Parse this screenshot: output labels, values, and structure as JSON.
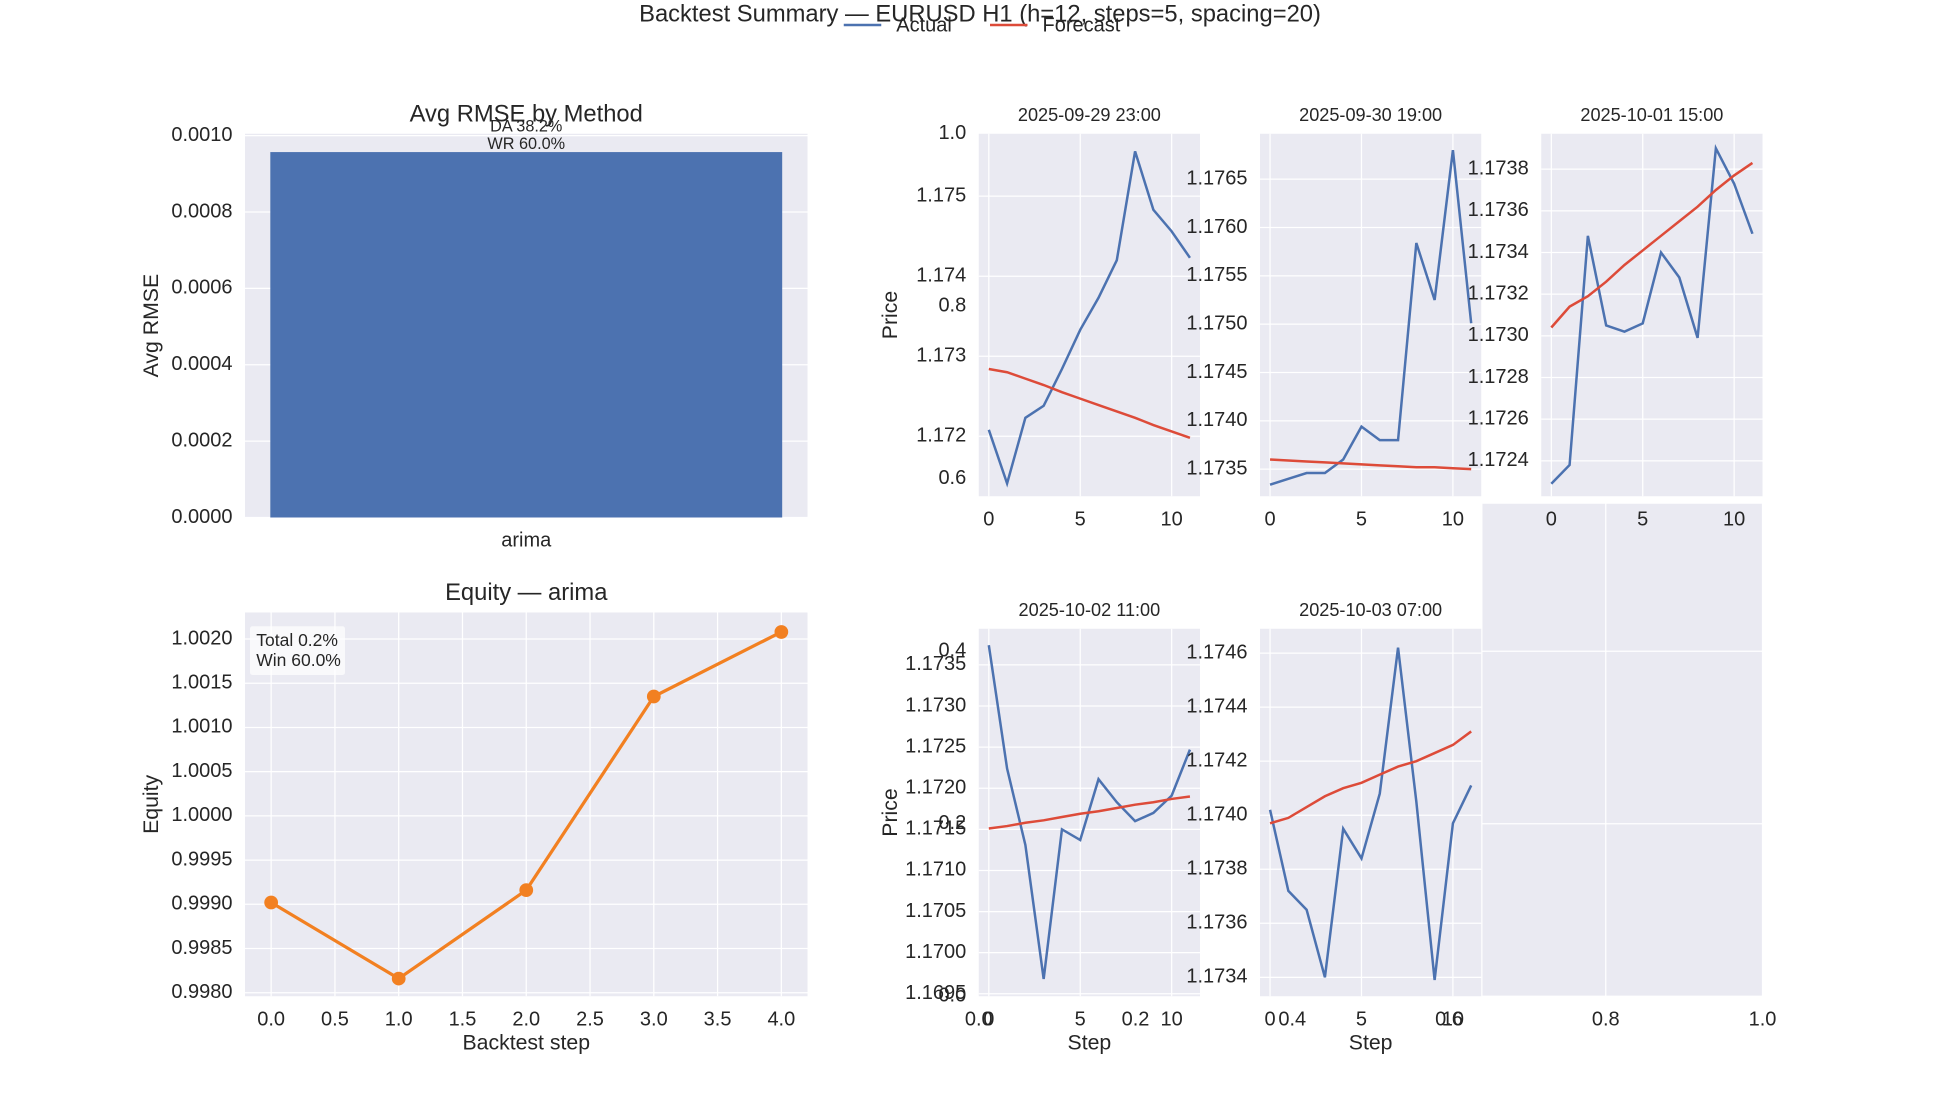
{
  "title": "Backtest Summary — EURUSD H1 (h=12, steps=5, spacing=20)",
  "legend": [
    {
      "name": "Actual",
      "color": "#4c72b0"
    },
    {
      "name": "Forecast",
      "color": "#dd4b39"
    }
  ],
  "chart_data": [
    {
      "type": "bar",
      "title": "Avg RMSE by Method",
      "ylabel": "Avg RMSE",
      "facecolor": "#eaeaf2",
      "grid": true,
      "categories": [
        "arima"
      ],
      "values": [
        0.000957
      ],
      "color": "#4c72b0",
      "annotations": [
        "DA 38.2%",
        "WR 60.0%"
      ],
      "ylim": [
        0,
        0.001005
      ],
      "yticks": [
        {
          "value": 0,
          "label": "0.0000"
        },
        {
          "value": 0.0002,
          "label": "0.0002"
        },
        {
          "value": 0.0004,
          "label": "0.0004"
        },
        {
          "value": 0.0006,
          "label": "0.0006"
        },
        {
          "value": 0.0008,
          "label": "0.0008"
        },
        {
          "value": 0.001,
          "label": "0.0010"
        }
      ]
    },
    {
      "type": "line",
      "title": "Equity — arima",
      "xlabel": "Backtest step",
      "ylabel": "Equity",
      "facecolor": "#eaeaf2",
      "grid": true,
      "x": [
        0,
        1,
        2,
        3,
        4
      ],
      "series": [
        {
          "color": "#f28021",
          "values": [
            0.99902,
            0.99816,
            0.99916,
            1.00135,
            1.00208
          ],
          "markers": true
        }
      ],
      "annotations": [
        "Total 0.2%",
        "Win 60.0%"
      ],
      "xlim": [
        -0.205,
        4.205
      ],
      "ylim": [
        0.99796,
        1.0023
      ],
      "xticks": [
        {
          "value": 0,
          "label": "0.0"
        },
        0.5,
        {
          "value": 1,
          "label": "1.0"
        },
        1.5,
        {
          "value": 2,
          "label": "2.0"
        },
        2.5,
        {
          "value": 3,
          "label": "3.0"
        },
        3.5,
        {
          "value": 4,
          "label": "4.0"
        }
      ],
      "yticks": [
        {
          "value": 0.998,
          "label": "0.9980"
        },
        0.9985,
        {
          "value": 0.999,
          "label": "0.9990"
        },
        0.9995,
        {
          "value": 1,
          "label": "1.0000"
        },
        1.0005,
        {
          "value": 1.001,
          "label": "1.0010"
        },
        1.0015,
        {
          "value": 1.002,
          "label": "1.0020"
        }
      ]
    },
    {
      "type": "empty",
      "grid": true,
      "xlim": [
        0,
        1
      ],
      "ylim": [
        0,
        1
      ],
      "xticks": [
        {
          "value": 0,
          "label": "0.0"
        },
        0.2,
        0.4,
        0.6,
        0.8,
        {
          "value": 1,
          "label": "1.0"
        }
      ],
      "yticks": [
        {
          "value": 0,
          "label": "0.0"
        },
        0.2,
        0.4,
        0.6,
        0.8,
        {
          "value": 1,
          "label": "1.0"
        }
      ]
    },
    {
      "type": "line",
      "title": "2025-09-29 23:00",
      "ylabel": "Price",
      "facecolor": "#eaeaf2",
      "grid": true,
      "x": [
        0,
        1,
        2,
        3,
        4,
        5,
        6,
        7,
        8,
        9,
        10,
        11
      ],
      "series": [
        {
          "color": "#4c72b0",
          "values": [
            1.17208,
            1.17141,
            1.17223,
            1.17238,
            1.17284,
            1.17333,
            1.17373,
            1.1742,
            1.17556,
            1.17483,
            1.17456,
            1.17423
          ]
        },
        {
          "color": "#dd4b39",
          "values": [
            1.17284,
            1.1728,
            1.17272,
            1.17264,
            1.17255,
            1.17247,
            1.17239,
            1.17231,
            1.17223,
            1.17214,
            1.17206,
            1.17198
          ]
        }
      ],
      "xlim": [
        -0.55,
        11.55
      ],
      "ylim": [
        1.17125,
        1.17578
      ],
      "xticks": [
        0,
        5,
        10
      ],
      "yticks": [
        1.172,
        1.173,
        1.174,
        1.175
      ]
    },
    {
      "type": "line",
      "title": "2025-09-30 19:00",
      "facecolor": "#eaeaf2",
      "grid": true,
      "x": [
        0,
        1,
        2,
        3,
        4,
        5,
        6,
        7,
        8,
        9,
        10,
        11
      ],
      "series": [
        {
          "color": "#4c72b0",
          "values": [
            1.17334,
            1.1734,
            1.17346,
            1.17346,
            1.1736,
            1.17394,
            1.1738,
            1.1738,
            1.17584,
            1.17525,
            1.1768,
            1.17501
          ]
        },
        {
          "color": "#dd4b39",
          "values": [
            1.1736,
            1.17359,
            1.17358,
            1.17357,
            1.17356,
            1.17355,
            1.17354,
            1.17353,
            1.17352,
            1.17352,
            1.17351,
            1.1735
          ]
        }
      ],
      "xlim": [
        -0.55,
        11.55
      ],
      "ylim": [
        1.17322,
        1.17697
      ],
      "xticks": [
        0,
        5,
        10
      ],
      "yticks": [
        1.1735,
        {
          "value": 1.174,
          "label": "1.1740"
        },
        1.1745,
        {
          "value": 1.175,
          "label": "1.1750"
        },
        1.1755,
        {
          "value": 1.176,
          "label": "1.1760"
        },
        1.1765
      ]
    },
    {
      "type": "line",
      "title": "2025-10-01 15:00",
      "facecolor": "#eaeaf2",
      "grid": true,
      "x": [
        0,
        1,
        2,
        3,
        4,
        5,
        6,
        7,
        8,
        9,
        10,
        11
      ],
      "series": [
        {
          "color": "#4c72b0",
          "values": [
            1.17229,
            1.17238,
            1.17348,
            1.17305,
            1.17302,
            1.17306,
            1.1734,
            1.17328,
            1.17299,
            1.1739,
            1.17373,
            1.17349
          ]
        },
        {
          "color": "#dd4b39",
          "values": [
            1.17304,
            1.17314,
            1.17319,
            1.17326,
            1.17334,
            1.17341,
            1.17348,
            1.17355,
            1.17362,
            1.1737,
            1.17377,
            1.17383
          ]
        }
      ],
      "xlim": [
        -0.55,
        11.55
      ],
      "ylim": [
        1.17223,
        1.17397
      ],
      "xticks": [
        0,
        5,
        10
      ],
      "yticks": [
        1.1724,
        1.1726,
        1.1728,
        {
          "value": 1.173,
          "label": "1.1730"
        },
        1.1732,
        1.1734,
        1.1736,
        1.1738
      ]
    },
    {
      "type": "line",
      "title": "2025-10-02 11:00",
      "xlabel": "Step",
      "ylabel": "Price",
      "facecolor": "#eaeaf2",
      "grid": true,
      "x": [
        0,
        1,
        2,
        3,
        4,
        5,
        6,
        7,
        8,
        9,
        10,
        11
      ],
      "series": [
        {
          "color": "#4c72b0",
          "values": [
            1.17374,
            1.17224,
            1.17131,
            1.16968,
            1.1715,
            1.17137,
            1.17211,
            1.17183,
            1.1716,
            1.1717,
            1.17191,
            1.17247
          ]
        },
        {
          "color": "#dd4b39",
          "values": [
            1.17151,
            1.17154,
            1.17158,
            1.17161,
            1.17165,
            1.17169,
            1.17172,
            1.17176,
            1.1718,
            1.17183,
            1.17187,
            1.1719
          ]
        }
      ],
      "xlim": [
        -0.55,
        11.55
      ],
      "ylim": [
        1.16947,
        1.17394
      ],
      "xticks": [
        0,
        5,
        10
      ],
      "yticks": [
        1.1695,
        {
          "value": 1.17,
          "label": "1.1700"
        },
        1.1705,
        {
          "value": 1.171,
          "label": "1.1710"
        },
        1.1715,
        {
          "value": 1.172,
          "label": "1.1720"
        },
        1.1725,
        {
          "value": 1.173,
          "label": "1.1730"
        },
        1.1735
      ]
    },
    {
      "type": "line",
      "title": "2025-10-03 07:00",
      "xlabel": "Step",
      "facecolor": "#eaeaf2",
      "grid": true,
      "x": [
        0,
        1,
        2,
        3,
        4,
        5,
        6,
        7,
        8,
        9,
        10,
        11
      ],
      "series": [
        {
          "color": "#4c72b0",
          "values": [
            1.17402,
            1.17372,
            1.17365,
            1.1734,
            1.17395,
            1.17384,
            1.17408,
            1.17462,
            1.17405,
            1.17339,
            1.17397,
            1.17411
          ]
        },
        {
          "color": "#dd4b39",
          "values": [
            1.17397,
            1.17399,
            1.17403,
            1.17407,
            1.1741,
            1.17412,
            1.17415,
            1.17418,
            1.1742,
            1.17423,
            1.17426,
            1.17431
          ]
        }
      ],
      "xlim": [
        -0.55,
        11.55
      ],
      "ylim": [
        1.17333,
        1.17469
      ],
      "xticks": [
        0,
        5,
        10
      ],
      "yticks": [
        1.1734,
        1.1736,
        1.1738,
        {
          "value": 1.174,
          "label": "1.1740"
        },
        1.1742,
        1.1744,
        1.1746
      ]
    }
  ]
}
